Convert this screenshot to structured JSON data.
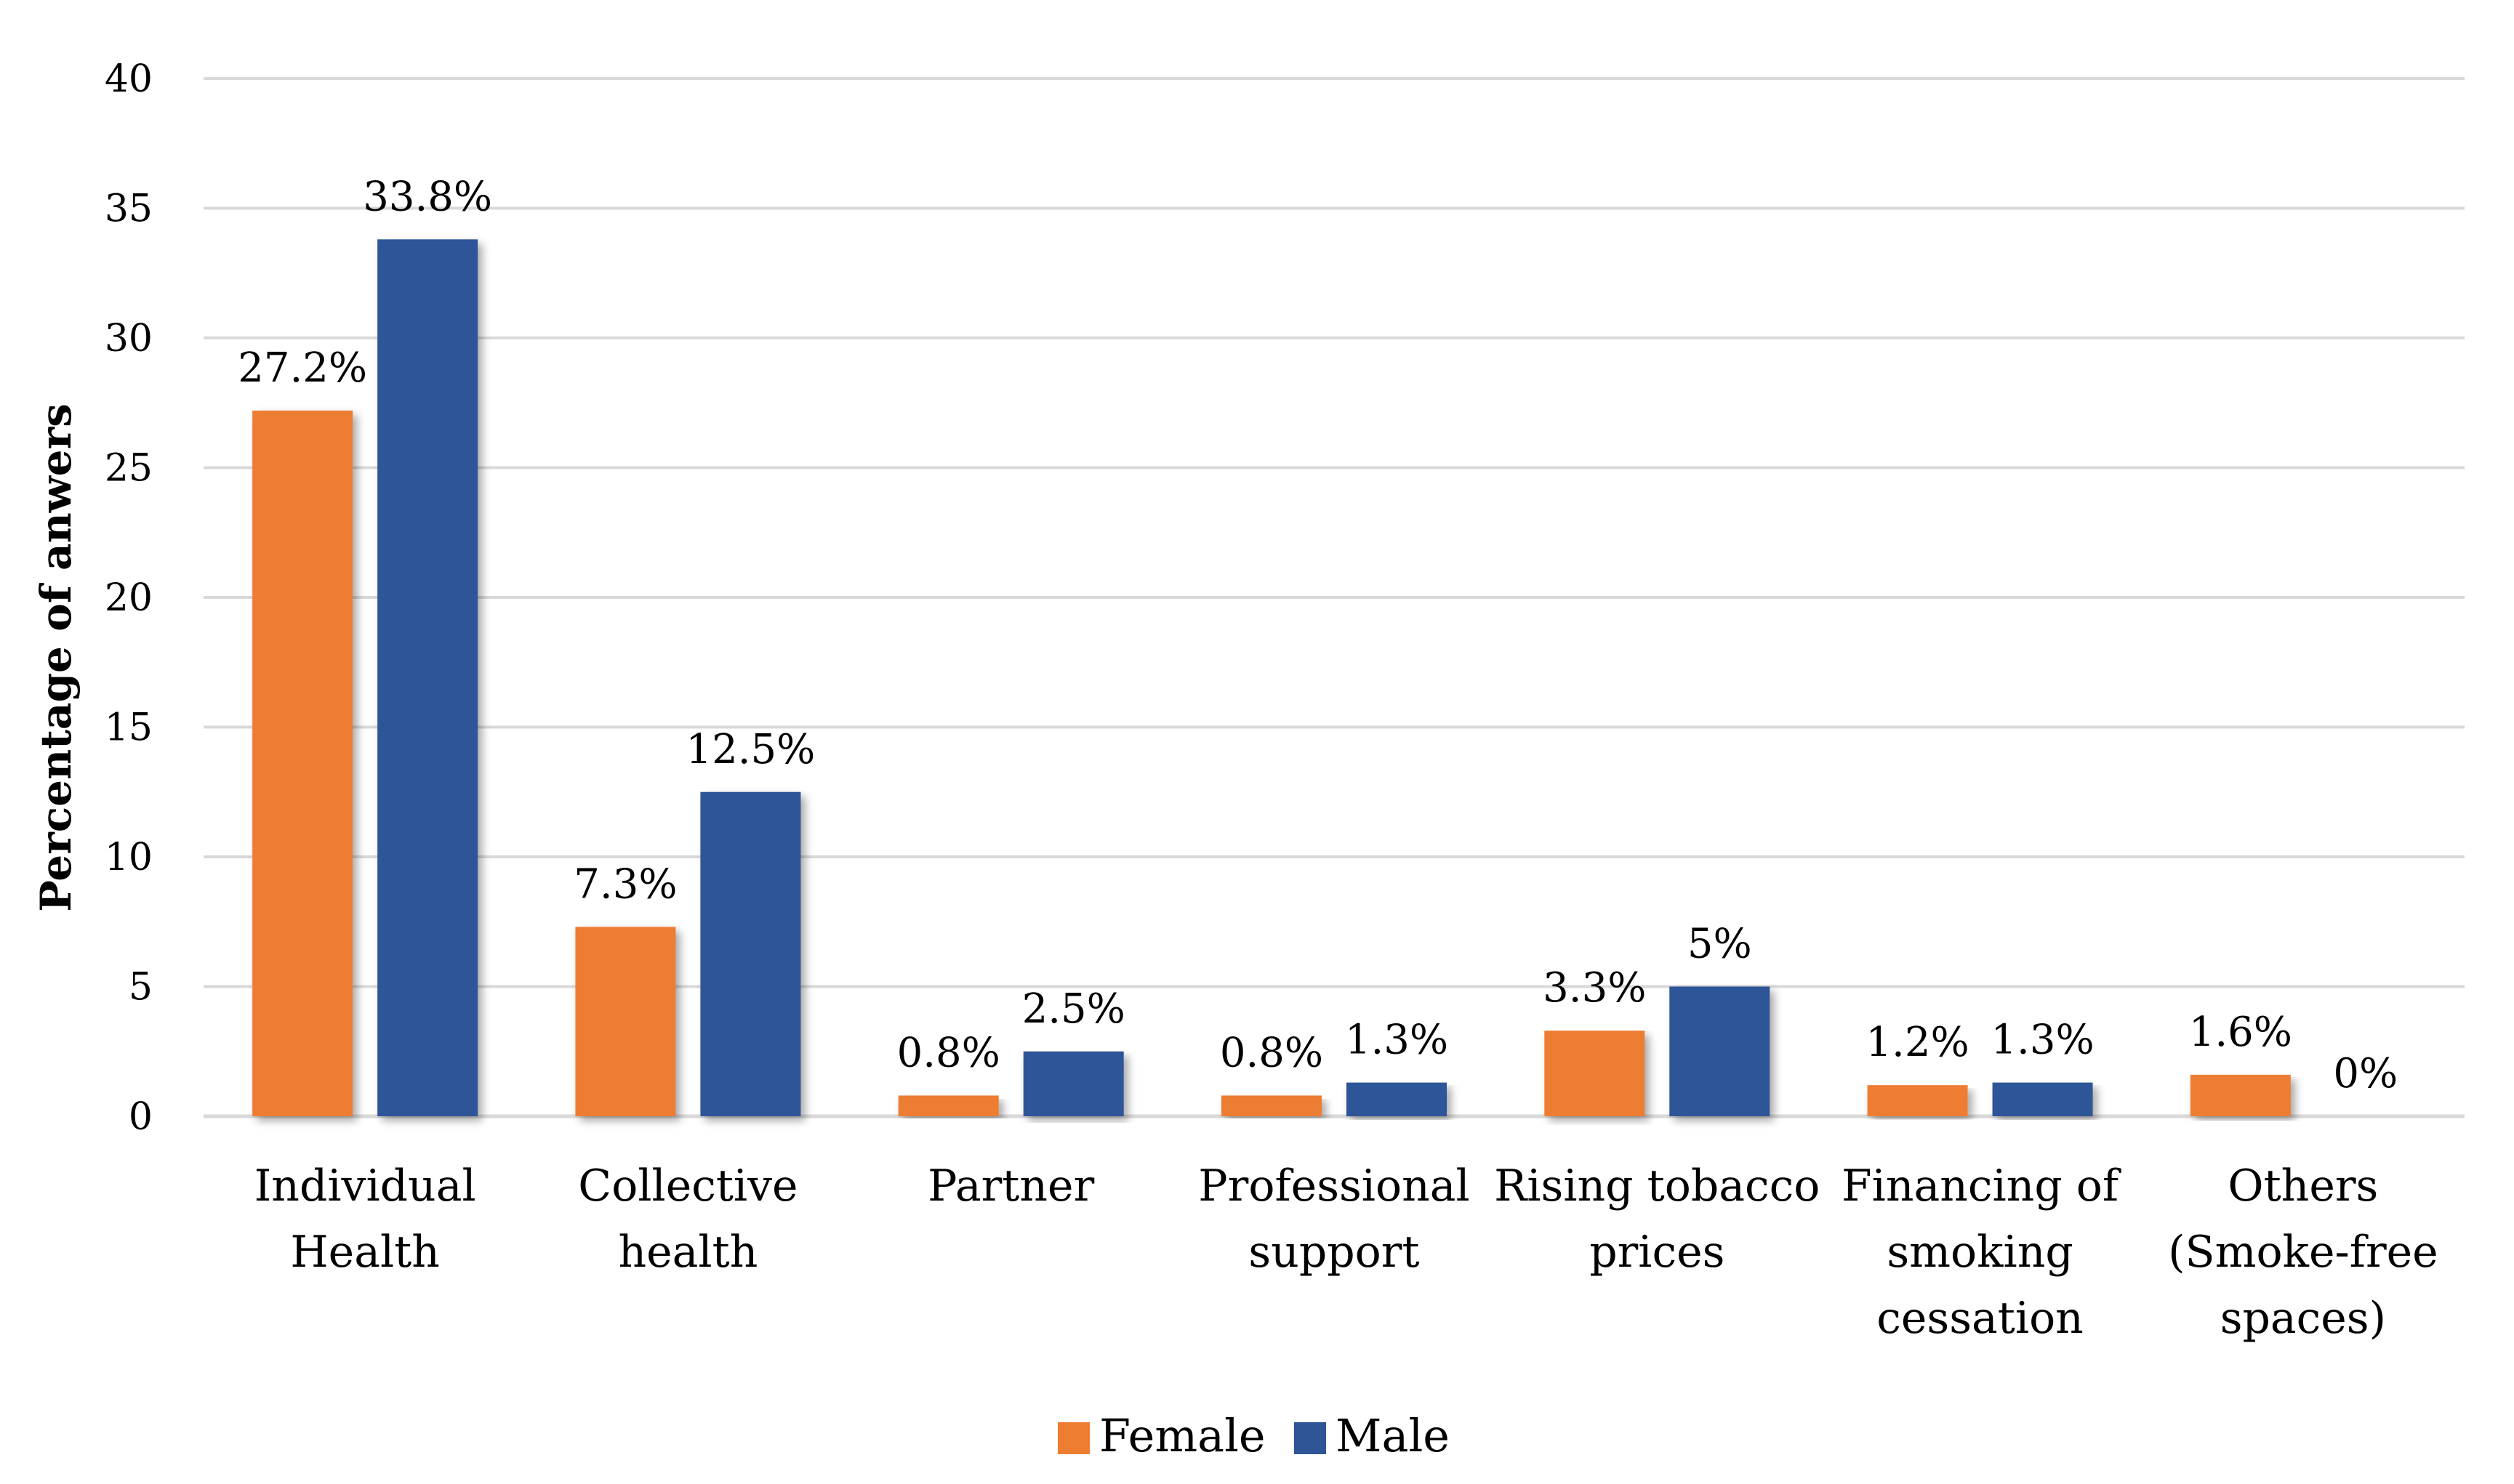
{
  "chart_data": {
    "type": "bar",
    "title": "",
    "xlabel": "",
    "ylabel": "Percentage of anwers",
    "ylim": [
      0,
      40
    ],
    "yticks": [
      0,
      5,
      10,
      15,
      20,
      25,
      30,
      35,
      40
    ],
    "grid": true,
    "legend_position": "bottom-center",
    "categories": [
      [
        "Individual",
        "Health"
      ],
      [
        "Collective",
        "health"
      ],
      [
        "Partner"
      ],
      [
        "Professional",
        "support"
      ],
      [
        "Rising tobacco",
        "prices"
      ],
      [
        "Financing of",
        "smoking",
        "cessation"
      ],
      [
        "Others",
        "(Smoke-free",
        "spaces)"
      ]
    ],
    "series": [
      {
        "name": "Female",
        "color": "#ED7D31",
        "values": [
          27.2,
          7.3,
          0.8,
          0.8,
          3.3,
          1.2,
          1.6
        ],
        "labels": [
          "27.2%",
          "7.3%",
          "0.8%",
          "0.8%",
          "3.3%",
          "1.2%",
          "1.6%"
        ]
      },
      {
        "name": "Male",
        "color": "#2F5597",
        "values": [
          33.8,
          12.5,
          2.5,
          1.3,
          5,
          1.3,
          0
        ],
        "labels": [
          "33.8%",
          "12.5%",
          "2.5%",
          "1.3%",
          "5%",
          "1.3%",
          "0%"
        ]
      }
    ]
  }
}
